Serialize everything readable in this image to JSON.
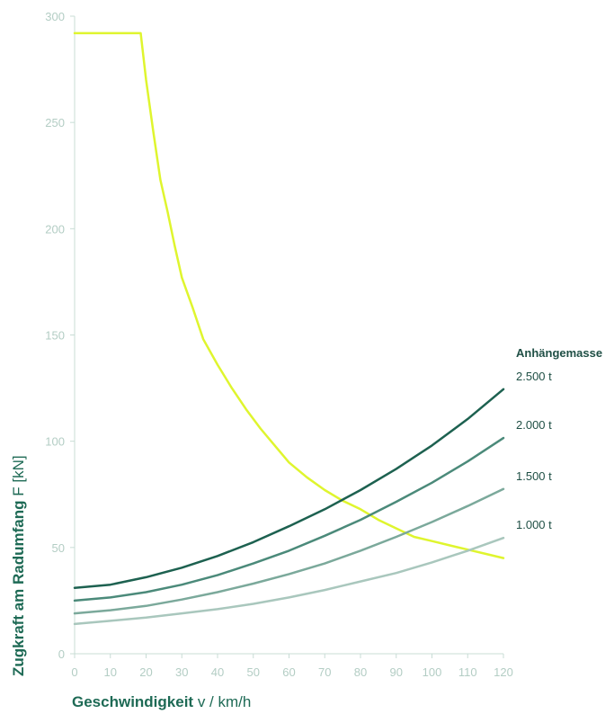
{
  "chart_data": {
    "type": "line",
    "xlabel": {
      "bold": "Geschwindigkeit",
      "regular": " v / km/h"
    },
    "ylabel": {
      "bold": "Zugkraft am Radumfang",
      "regular": " F [kN]"
    },
    "xlim": [
      0,
      120
    ],
    "ylim": [
      0,
      300
    ],
    "x_ticks": [
      0,
      10,
      20,
      30,
      40,
      50,
      60,
      70,
      80,
      90,
      100,
      110,
      120
    ],
    "y_ticks": [
      0,
      50,
      100,
      150,
      200,
      250,
      300
    ],
    "legend_title": "Anhängemasse",
    "colors": {
      "traction": "#dff52e",
      "m2500": "#1d6150",
      "m2000": "#4b8a7a",
      "m1500": "#7ba99b",
      "m1000": "#a9c7bd",
      "axis": "#c8dcd5",
      "tick_text": "#b3cdc4",
      "title_text": "#1e6a55"
    },
    "series": [
      {
        "color_key": "traction",
        "x": [
          0,
          5,
          10,
          15,
          18.5,
          20,
          22,
          24,
          26,
          28,
          30,
          33,
          36,
          40,
          44,
          48,
          52,
          56,
          60,
          65,
          70,
          75,
          80,
          85,
          90,
          95,
          100,
          105,
          110,
          115,
          120
        ],
        "y": [
          292,
          292,
          292,
          292,
          292,
          270,
          246,
          223,
          208,
          192,
          177,
          163,
          148,
          136,
          125,
          115,
          106,
          98,
          90,
          83,
          77,
          72,
          68,
          63,
          59,
          55,
          53,
          51,
          49,
          47,
          45
        ]
      },
      {
        "label": "2.500 t",
        "color_key": "m2500",
        "x": [
          0,
          10,
          20,
          30,
          40,
          50,
          60,
          70,
          80,
          90,
          100,
          110,
          120
        ],
        "y": [
          31,
          32.5,
          36,
          40.5,
          46,
          52.5,
          60,
          68,
          77,
          87,
          98,
          110.5,
          124.5
        ]
      },
      {
        "label": "2.000 t",
        "color_key": "m2000",
        "x": [
          0,
          10,
          20,
          30,
          40,
          50,
          60,
          70,
          80,
          90,
          100,
          110,
          120
        ],
        "y": [
          25,
          26.5,
          29,
          32.5,
          37,
          42.5,
          48.5,
          55.5,
          63,
          71.5,
          80.5,
          90.5,
          101.5
        ]
      },
      {
        "label": "1.500 t",
        "color_key": "m1500",
        "x": [
          0,
          10,
          20,
          30,
          40,
          50,
          60,
          70,
          80,
          90,
          100,
          110,
          120
        ],
        "y": [
          19,
          20.5,
          22.5,
          25.5,
          29,
          33,
          37.5,
          42.5,
          48.5,
          55,
          62,
          69.5,
          77.5
        ]
      },
      {
        "label": "1.000 t",
        "color_key": "m1000",
        "x": [
          0,
          10,
          20,
          30,
          40,
          50,
          60,
          70,
          80,
          90,
          100,
          110,
          120
        ],
        "y": [
          14,
          15.5,
          17,
          19,
          21,
          23.5,
          26.5,
          30,
          34,
          38,
          43,
          48.5,
          54.5
        ]
      }
    ]
  }
}
